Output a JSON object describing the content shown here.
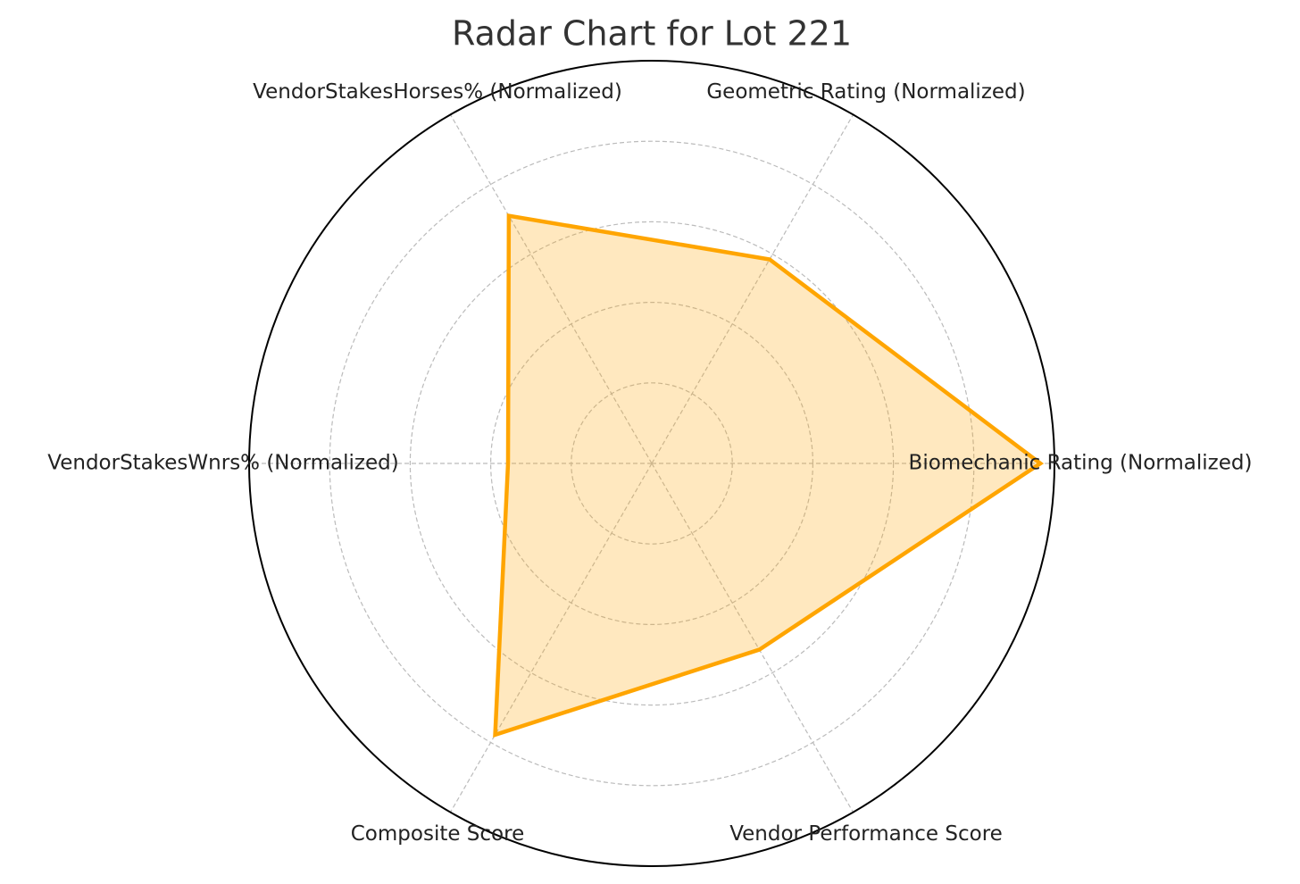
{
  "chart_data": {
    "type": "radar",
    "title": "Radar Chart for Lot 221",
    "categories": [
      "Biomechanic Rating (Normalized)",
      "Geometric Rating (Normalized)",
      "VendorStakesHorses% (Normalized)",
      "VendorStakesWnrs% (Normalized)",
      "Composite Score",
      "Vendor Performance Score"
    ],
    "values": [
      0.965,
      0.585,
      0.71,
      0.357,
      0.778,
      0.534
    ],
    "color": "#ffa500",
    "rlim": [
      0,
      1
    ],
    "rticks": [
      0.2,
      0.4,
      0.6,
      0.8
    ],
    "grid": true
  }
}
